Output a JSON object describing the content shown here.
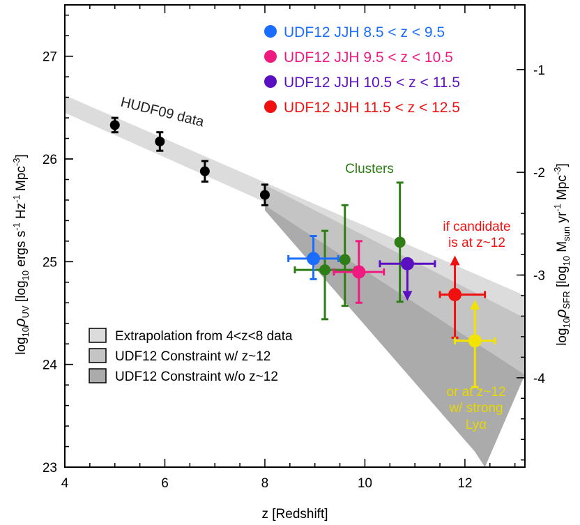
{
  "chart_data": {
    "type": "scatter",
    "xlabel": "z [Redshift]",
    "ylabel_left": "log10 ρUV [log10 ergs s-1 Hz-1 Mpc-3]",
    "ylabel_right": "log10 ρSFR [log10 Msun yr-1 Mpc-3]",
    "xlim": [
      4,
      13.2
    ],
    "ylim": [
      23,
      27.5
    ],
    "xticks": [
      4,
      6,
      8,
      10,
      12
    ],
    "yticks": [
      23,
      24,
      25,
      26,
      27
    ],
    "right_ticks": [
      {
        "label": "-1",
        "y": 26.87
      },
      {
        "label": "-2",
        "y": 25.87
      },
      {
        "label": "-3",
        "y": 24.87
      },
      {
        "label": "-4",
        "y": 23.87
      }
    ],
    "bands": [
      {
        "name": "Extrapolation from 4<z<8 data",
        "color": "#dcdcdc",
        "upper": [
          [
            4,
            26.62
          ],
          [
            13.2,
            24.67
          ]
        ],
        "lower": [
          [
            4,
            26.45
          ],
          [
            13.2,
            24.45
          ]
        ]
      },
      {
        "name": "UDF12 Constraint w/ z~12",
        "color": "#c4c4c4",
        "upper": [
          [
            8,
            25.75
          ],
          [
            13.2,
            24.45
          ]
        ],
        "lower": [
          [
            8,
            25.55
          ],
          [
            13.2,
            23.9
          ]
        ]
      },
      {
        "name": "UDF12 Constraint w/o z~12",
        "color": "#ababab",
        "upper": [
          [
            8,
            25.55
          ],
          [
            13.2,
            23.9
          ]
        ],
        "lower": [
          [
            8,
            25.5
          ],
          [
            12.2,
            23.15
          ],
          [
            12.4,
            23
          ]
        ]
      }
    ],
    "hudf09": {
      "label": "HUDF09 data",
      "color": "#000000",
      "points": [
        {
          "x": 5.0,
          "y": 26.33,
          "yerr": [
            0.07,
            0.07
          ]
        },
        {
          "x": 5.9,
          "y": 26.17,
          "yerr": [
            0.09,
            0.09
          ]
        },
        {
          "x": 6.8,
          "y": 25.88,
          "yerr": [
            0.1,
            0.1
          ]
        },
        {
          "x": 8.0,
          "y": 25.65,
          "yerr": [
            0.1,
            0.1
          ]
        }
      ]
    },
    "series": [
      {
        "name": "UDF12 JJH 8.5 < z < 9.5",
        "color": "#1a6dff",
        "points": [
          {
            "x": 8.97,
            "y": 25.03,
            "xerr": [
              0.5,
              0.5
            ],
            "yerr": [
              0.2,
              0.22
            ]
          }
        ]
      },
      {
        "name": "UDF12 JJH 9.5 < z < 10.5",
        "color": "#ee1a80",
        "points": [
          {
            "x": 9.88,
            "y": 24.9,
            "xerr": [
              0.5,
              0.5
            ],
            "yerr": [
              0.3,
              0.3
            ]
          }
        ]
      },
      {
        "name": "UDF12 JJH 10.5 < z < 11.5",
        "color": "#5a10c0",
        "points": [
          {
            "x": 10.85,
            "y": 24.98,
            "xerr": [
              0.55,
              0.55
            ],
            "upper_limit": true,
            "arrow_to": 24.62
          }
        ]
      },
      {
        "name": "UDF12 JJH 11.5 < z < 12.5",
        "color": "#f01010",
        "points": [
          {
            "x": 11.8,
            "y": 24.68,
            "xerr": [
              0.3,
              0.6
            ],
            "yerr": [
              0.42,
              0.0
            ],
            "lower_limit": true,
            "arrow_to": 25.06
          }
        ]
      }
    ],
    "clusters": {
      "label": "Clusters",
      "color": "#2e7d16",
      "points": [
        {
          "x": 9.2,
          "y": 24.92,
          "xerr": [
            0.6,
            0.6
          ],
          "yerr": [
            0.48,
            0.38
          ]
        },
        {
          "x": 9.6,
          "y": 25.02,
          "yerr": [
            0.45,
            0.53
          ]
        },
        {
          "x": 10.7,
          "y": 25.19,
          "yerr": [
            0.58,
            0.58
          ]
        }
      ]
    },
    "lya_point": {
      "x": 12.2,
      "y": 24.23,
      "xerr": [
        0.4,
        0.4
      ],
      "yerr": [
        0.45,
        0.0
      ],
      "color": "#f2e400",
      "arrow_to": 24.63
    },
    "annotations": [
      {
        "text": "if candidate",
        "color": "#f01010"
      },
      {
        "text": "is at z~12",
        "color": "#f01010"
      },
      {
        "text": "or at z~12",
        "color": "#e6d800"
      },
      {
        "text": "w/ strong",
        "color": "#e6d800"
      },
      {
        "text": "Lyα",
        "color": "#e6d800"
      }
    ],
    "legend_boxes": [
      {
        "label": "Extrapolation from 4<z<8 data",
        "color": "#dcdcdc"
      },
      {
        "label": "UDF12 Constraint w/ z~12",
        "color": "#c4c4c4"
      },
      {
        "label": "UDF12 Constraint w/o z~12",
        "color": "#ababab"
      }
    ]
  }
}
